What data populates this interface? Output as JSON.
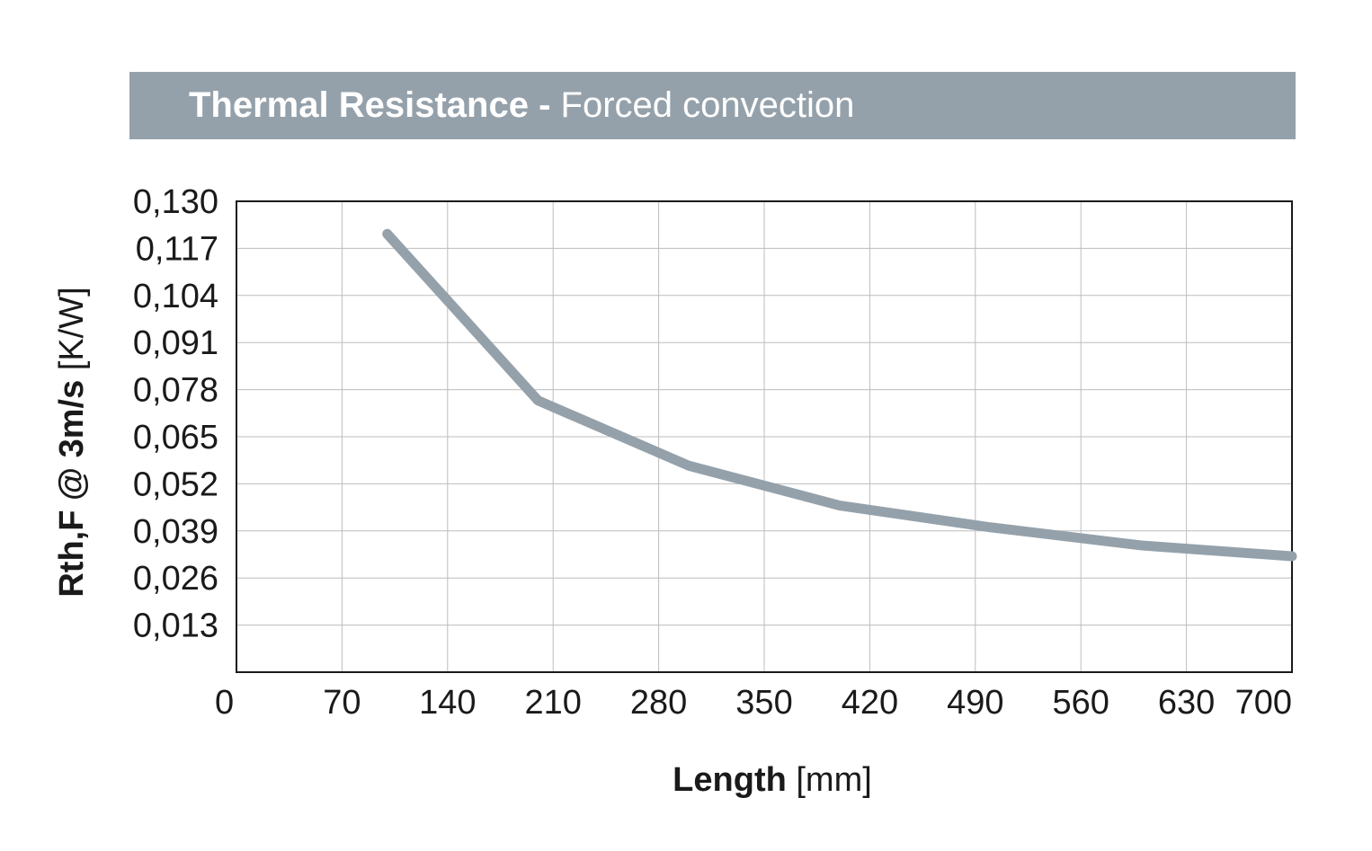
{
  "header": {
    "title_bold": "Thermal Resistance -",
    "title_regular": "Forced convection",
    "background_color": "#95a1aa"
  },
  "chart_data": {
    "type": "line",
    "title": "Thermal Resistance - Forced convection",
    "xlabel_bold": "Length",
    "xlabel_unit": "[mm]",
    "ylabel_bold": "Rth,F @ 3m/s",
    "ylabel_unit": "[K/W]",
    "xlim": [
      0,
      700
    ],
    "ylim": [
      0,
      0.13
    ],
    "x_ticks": [
      0,
      70,
      140,
      210,
      280,
      350,
      420,
      490,
      560,
      630,
      700
    ],
    "x_tick_labels": [
      "0",
      "70",
      "140",
      "210",
      "280",
      "350",
      "420",
      "490",
      "560",
      "630",
      "700"
    ],
    "y_ticks": [
      0.013,
      0.026,
      0.039,
      0.052,
      0.065,
      0.078,
      0.091,
      0.104,
      0.117,
      0.13
    ],
    "y_tick_labels": [
      "0,013",
      "0,026",
      "0,039",
      "0,052",
      "0,065",
      "0,078",
      "0,091",
      "0,104",
      "0,117",
      "0,130"
    ],
    "grid": true,
    "line_color": "#95a1aa",
    "series": [
      {
        "x": [
          100,
          200,
          300,
          400,
          500,
          600,
          700
        ],
        "y": [
          0.121,
          0.075,
          0.057,
          0.046,
          0.04,
          0.035,
          0.032
        ]
      }
    ]
  }
}
